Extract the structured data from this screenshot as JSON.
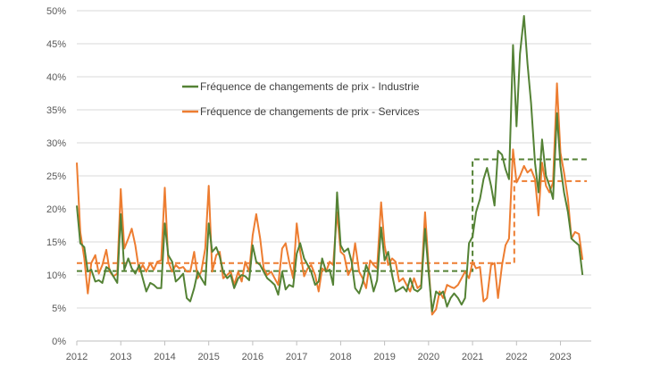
{
  "chart_data": {
    "type": "line",
    "title": "",
    "xlabel": "",
    "ylabel": "",
    "xlim": [
      2012,
      2023.7
    ],
    "ylim": [
      0,
      50
    ],
    "y_ticks": [
      "0%",
      "5%",
      "10%",
      "15%",
      "20%",
      "25%",
      "30%",
      "35%",
      "40%",
      "45%",
      "50%"
    ],
    "x_ticks": [
      "2012",
      "2013",
      "2014",
      "2015",
      "2016",
      "2017",
      "2018",
      "2019",
      "2020",
      "2021",
      "2022",
      "2023"
    ],
    "grid": true,
    "legend_position": "upper-center",
    "series": [
      {
        "name": "Fréquence de changements de prix - Industrie",
        "color": "#548235",
        "points": [
          [
            2012.0,
            20.5
          ],
          [
            2012.08,
            14.8
          ],
          [
            2012.17,
            14.2
          ],
          [
            2012.25,
            10.5
          ],
          [
            2012.33,
            10.8
          ],
          [
            2012.42,
            9.0
          ],
          [
            2012.5,
            9.2
          ],
          [
            2012.58,
            8.8
          ],
          [
            2012.67,
            11.2
          ],
          [
            2012.75,
            10.8
          ],
          [
            2012.83,
            9.8
          ],
          [
            2012.92,
            8.8
          ],
          [
            2013.0,
            19.2
          ],
          [
            2013.08,
            10.8
          ],
          [
            2013.17,
            12.5
          ],
          [
            2013.25,
            11.0
          ],
          [
            2013.33,
            10.2
          ],
          [
            2013.42,
            11.5
          ],
          [
            2013.5,
            9.5
          ],
          [
            2013.58,
            7.5
          ],
          [
            2013.67,
            8.8
          ],
          [
            2013.75,
            8.5
          ],
          [
            2013.83,
            8.0
          ],
          [
            2013.92,
            8.0
          ],
          [
            2014.0,
            17.8
          ],
          [
            2014.08,
            13.0
          ],
          [
            2014.17,
            12.0
          ],
          [
            2014.25,
            9.0
          ],
          [
            2014.33,
            9.5
          ],
          [
            2014.42,
            10.2
          ],
          [
            2014.5,
            6.5
          ],
          [
            2014.58,
            6.0
          ],
          [
            2014.67,
            8.0
          ],
          [
            2014.75,
            10.5
          ],
          [
            2014.83,
            9.5
          ],
          [
            2014.92,
            8.5
          ],
          [
            2015.0,
            17.8
          ],
          [
            2015.08,
            13.5
          ],
          [
            2015.17,
            14.2
          ],
          [
            2015.25,
            12.8
          ],
          [
            2015.33,
            10.5
          ],
          [
            2015.42,
            9.5
          ],
          [
            2015.5,
            10.0
          ],
          [
            2015.58,
            8.0
          ],
          [
            2015.67,
            9.5
          ],
          [
            2015.75,
            10.0
          ],
          [
            2015.83,
            9.8
          ],
          [
            2015.92,
            9.2
          ],
          [
            2016.0,
            14.5
          ],
          [
            2016.08,
            12.0
          ],
          [
            2016.17,
            11.5
          ],
          [
            2016.25,
            10.5
          ],
          [
            2016.33,
            9.5
          ],
          [
            2016.42,
            9.0
          ],
          [
            2016.5,
            8.5
          ],
          [
            2016.58,
            7.0
          ],
          [
            2016.67,
            10.5
          ],
          [
            2016.75,
            7.8
          ],
          [
            2016.83,
            8.5
          ],
          [
            2016.92,
            8.2
          ],
          [
            2017.0,
            13.2
          ],
          [
            2017.08,
            14.8
          ],
          [
            2017.17,
            12.5
          ],
          [
            2017.25,
            11.5
          ],
          [
            2017.33,
            10.5
          ],
          [
            2017.42,
            8.5
          ],
          [
            2017.5,
            9.0
          ],
          [
            2017.58,
            12.5
          ],
          [
            2017.67,
            10.5
          ],
          [
            2017.75,
            10.8
          ],
          [
            2017.83,
            8.5
          ],
          [
            2017.92,
            22.5
          ],
          [
            2018.0,
            14.5
          ],
          [
            2018.08,
            13.5
          ],
          [
            2018.17,
            14.0
          ],
          [
            2018.25,
            12.0
          ],
          [
            2018.33,
            8.0
          ],
          [
            2018.42,
            7.2
          ],
          [
            2018.5,
            8.8
          ],
          [
            2018.58,
            11.5
          ],
          [
            2018.67,
            10.0
          ],
          [
            2018.75,
            7.5
          ],
          [
            2018.83,
            9.2
          ],
          [
            2018.92,
            17.2
          ],
          [
            2019.0,
            12.2
          ],
          [
            2019.08,
            13.5
          ],
          [
            2019.17,
            10.0
          ],
          [
            2019.25,
            7.5
          ],
          [
            2019.33,
            7.8
          ],
          [
            2019.42,
            8.2
          ],
          [
            2019.5,
            7.5
          ],
          [
            2019.58,
            9.5
          ],
          [
            2019.67,
            7.8
          ],
          [
            2019.75,
            7.5
          ],
          [
            2019.83,
            8.0
          ],
          [
            2019.92,
            17.0
          ],
          [
            2020.0,
            10.5
          ],
          [
            2020.08,
            4.5
          ],
          [
            2020.17,
            7.5
          ],
          [
            2020.25,
            7.0
          ],
          [
            2020.33,
            7.5
          ],
          [
            2020.42,
            5.2
          ],
          [
            2020.5,
            6.5
          ],
          [
            2020.58,
            7.2
          ],
          [
            2020.67,
            6.5
          ],
          [
            2020.75,
            5.5
          ],
          [
            2020.83,
            6.5
          ],
          [
            2020.92,
            14.8
          ],
          [
            2021.0,
            15.8
          ],
          [
            2021.08,
            19.5
          ],
          [
            2021.17,
            21.5
          ],
          [
            2021.25,
            24.5
          ],
          [
            2021.33,
            26.2
          ],
          [
            2021.42,
            23.5
          ],
          [
            2021.5,
            20.5
          ],
          [
            2021.58,
            28.8
          ],
          [
            2021.67,
            28.2
          ],
          [
            2021.75,
            26.0
          ],
          [
            2021.83,
            24.5
          ],
          [
            2021.92,
            44.8
          ],
          [
            2022.0,
            32.5
          ],
          [
            2022.08,
            43.5
          ],
          [
            2022.17,
            49.2
          ],
          [
            2022.25,
            42.0
          ],
          [
            2022.33,
            36.0
          ],
          [
            2022.42,
            27.0
          ],
          [
            2022.5,
            22.5
          ],
          [
            2022.58,
            30.5
          ],
          [
            2022.67,
            25.0
          ],
          [
            2022.75,
            23.5
          ],
          [
            2022.83,
            21.5
          ],
          [
            2022.92,
            34.5
          ],
          [
            2023.0,
            26.5
          ],
          [
            2023.08,
            22.5
          ],
          [
            2023.17,
            19.5
          ],
          [
            2023.25,
            15.5
          ],
          [
            2023.33,
            15.0
          ],
          [
            2023.42,
            14.5
          ],
          [
            2023.5,
            10.0
          ]
        ]
      },
      {
        "name": "Fréquence de changements de prix - Services",
        "color": "#ED7D31",
        "points": [
          [
            2012.0,
            27.0
          ],
          [
            2012.08,
            16.5
          ],
          [
            2012.17,
            12.5
          ],
          [
            2012.25,
            7.2
          ],
          [
            2012.33,
            11.8
          ],
          [
            2012.42,
            13.0
          ],
          [
            2012.5,
            10.2
          ],
          [
            2012.58,
            11.5
          ],
          [
            2012.67,
            13.8
          ],
          [
            2012.75,
            10.5
          ],
          [
            2012.83,
            9.8
          ],
          [
            2012.92,
            10.2
          ],
          [
            2013.0,
            23.0
          ],
          [
            2013.08,
            14.0
          ],
          [
            2013.17,
            15.5
          ],
          [
            2013.25,
            17.0
          ],
          [
            2013.33,
            14.5
          ],
          [
            2013.42,
            10.5
          ],
          [
            2013.5,
            11.5
          ],
          [
            2013.58,
            10.5
          ],
          [
            2013.67,
            11.8
          ],
          [
            2013.75,
            10.8
          ],
          [
            2013.83,
            12.0
          ],
          [
            2013.92,
            12.2
          ],
          [
            2014.0,
            23.2
          ],
          [
            2014.08,
            12.0
          ],
          [
            2014.17,
            10.5
          ],
          [
            2014.25,
            11.5
          ],
          [
            2014.33,
            11.0
          ],
          [
            2014.42,
            11.2
          ],
          [
            2014.5,
            10.5
          ],
          [
            2014.58,
            10.5
          ],
          [
            2014.67,
            13.5
          ],
          [
            2014.75,
            9.5
          ],
          [
            2014.83,
            10.5
          ],
          [
            2014.92,
            14.0
          ],
          [
            2015.0,
            23.5
          ],
          [
            2015.08,
            10.5
          ],
          [
            2015.17,
            13.0
          ],
          [
            2015.25,
            13.5
          ],
          [
            2015.33,
            9.5
          ],
          [
            2015.42,
            10.0
          ],
          [
            2015.5,
            10.5
          ],
          [
            2015.58,
            8.5
          ],
          [
            2015.67,
            10.5
          ],
          [
            2015.75,
            9.0
          ],
          [
            2015.83,
            12.0
          ],
          [
            2015.92,
            10.5
          ],
          [
            2016.0,
            16.0
          ],
          [
            2016.08,
            19.2
          ],
          [
            2016.17,
            15.5
          ],
          [
            2016.25,
            11.0
          ],
          [
            2016.33,
            10.0
          ],
          [
            2016.42,
            10.5
          ],
          [
            2016.5,
            9.5
          ],
          [
            2016.58,
            8.5
          ],
          [
            2016.67,
            14.0
          ],
          [
            2016.75,
            14.8
          ],
          [
            2016.83,
            12.0
          ],
          [
            2016.92,
            9.5
          ],
          [
            2017.0,
            17.8
          ],
          [
            2017.08,
            13.5
          ],
          [
            2017.17,
            9.8
          ],
          [
            2017.25,
            11.0
          ],
          [
            2017.33,
            11.5
          ],
          [
            2017.42,
            10.0
          ],
          [
            2017.5,
            7.5
          ],
          [
            2017.58,
            11.0
          ],
          [
            2017.67,
            10.5
          ],
          [
            2017.75,
            12.0
          ],
          [
            2017.83,
            11.5
          ],
          [
            2017.92,
            19.5
          ],
          [
            2018.0,
            13.5
          ],
          [
            2018.08,
            13.0
          ],
          [
            2018.17,
            10.0
          ],
          [
            2018.25,
            11.0
          ],
          [
            2018.33,
            14.8
          ],
          [
            2018.42,
            10.5
          ],
          [
            2018.5,
            9.5
          ],
          [
            2018.58,
            8.0
          ],
          [
            2018.67,
            12.2
          ],
          [
            2018.75,
            11.5
          ],
          [
            2018.83,
            11.0
          ],
          [
            2018.92,
            21.0
          ],
          [
            2019.0,
            14.5
          ],
          [
            2019.08,
            11.5
          ],
          [
            2019.17,
            12.5
          ],
          [
            2019.25,
            12.0
          ],
          [
            2019.33,
            9.0
          ],
          [
            2019.42,
            9.5
          ],
          [
            2019.5,
            8.5
          ],
          [
            2019.58,
            7.5
          ],
          [
            2019.67,
            9.5
          ],
          [
            2019.75,
            8.0
          ],
          [
            2019.83,
            8.5
          ],
          [
            2019.92,
            19.5
          ],
          [
            2020.0,
            11.5
          ],
          [
            2020.08,
            4.0
          ],
          [
            2020.17,
            4.8
          ],
          [
            2020.25,
            7.5
          ],
          [
            2020.33,
            6.5
          ],
          [
            2020.42,
            8.5
          ],
          [
            2020.5,
            8.2
          ],
          [
            2020.58,
            8.0
          ],
          [
            2020.67,
            8.5
          ],
          [
            2020.75,
            9.5
          ],
          [
            2020.83,
            10.5
          ],
          [
            2020.92,
            9.5
          ],
          [
            2021.0,
            12.0
          ],
          [
            2021.08,
            11.0
          ],
          [
            2021.17,
            11.2
          ],
          [
            2021.25,
            6.0
          ],
          [
            2021.33,
            6.5
          ],
          [
            2021.42,
            11.5
          ],
          [
            2021.5,
            11.8
          ],
          [
            2021.58,
            6.5
          ],
          [
            2021.67,
            11.5
          ],
          [
            2021.75,
            14.5
          ],
          [
            2021.83,
            15.5
          ],
          [
            2021.92,
            29.0
          ],
          [
            2022.0,
            24.0
          ],
          [
            2022.08,
            25.0
          ],
          [
            2022.17,
            26.5
          ],
          [
            2022.25,
            25.5
          ],
          [
            2022.33,
            26.0
          ],
          [
            2022.42,
            24.5
          ],
          [
            2022.5,
            19.0
          ],
          [
            2022.58,
            27.0
          ],
          [
            2022.67,
            23.5
          ],
          [
            2022.75,
            22.5
          ],
          [
            2022.83,
            24.0
          ],
          [
            2022.92,
            39.0
          ],
          [
            2023.0,
            28.5
          ],
          [
            2023.08,
            25.5
          ],
          [
            2023.17,
            21.5
          ],
          [
            2023.25,
            15.5
          ],
          [
            2023.33,
            16.5
          ],
          [
            2023.42,
            16.2
          ],
          [
            2023.5,
            12.3
          ]
        ]
      }
    ],
    "reference_lines": [
      {
        "series": "Fréquence de changements de prix - Industrie",
        "color": "#548235",
        "style": "dashed",
        "segments": [
          {
            "x": [
              2012.0,
              2021.0
            ],
            "y": 10.6
          },
          {
            "x": [
              2021.0,
              2023.6
            ],
            "y": 27.5
          }
        ]
      },
      {
        "series": "Fréquence de changements de prix - Services",
        "color": "#ED7D31",
        "style": "dashed",
        "segments": [
          {
            "x": [
              2012.0,
              2021.95
            ],
            "y": 11.8
          },
          {
            "x": [
              2021.95,
              2023.6
            ],
            "y": 24.2
          }
        ]
      }
    ]
  }
}
